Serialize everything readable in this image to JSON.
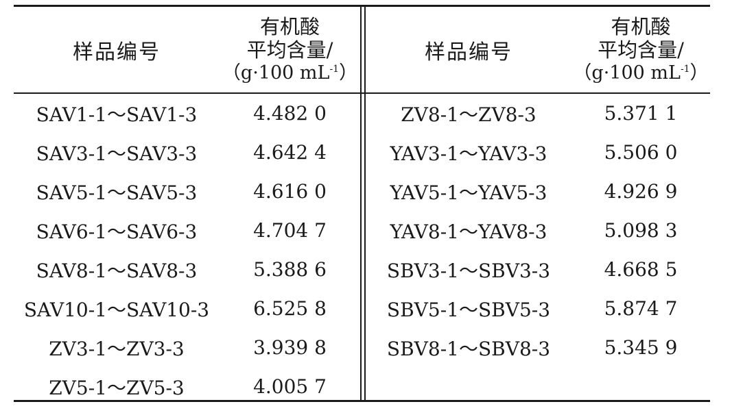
{
  "table": {
    "header": {
      "sample": "样品编号",
      "value_line1": "有机酸",
      "value_line2": "平均含量/",
      "unit_open": "（g·100 mL",
      "unit_sup": "-1",
      "unit_close": "）"
    },
    "left_rows": [
      {
        "sample": "SAV1-1～SAV1-3",
        "value": "4.482 0"
      },
      {
        "sample": "SAV3-1～SAV3-3",
        "value": "4.642 4"
      },
      {
        "sample": "SAV5-1～SAV5-3",
        "value": "4.616 0"
      },
      {
        "sample": "SAV6-1～SAV6-3",
        "value": "4.704 7"
      },
      {
        "sample": "SAV8-1～SAV8-3",
        "value": "5.388 6"
      },
      {
        "sample": "SAV10-1～SAV10-3",
        "value": "6.525 8"
      },
      {
        "sample": "ZV3-1～ZV3-3",
        "value": "3.939 8"
      },
      {
        "sample": "ZV5-1～ZV5-3",
        "value": "4.005 7"
      }
    ],
    "right_rows": [
      {
        "sample": "ZV8-1～ZV8-3",
        "value": "5.371 1"
      },
      {
        "sample": "YAV3-1～YAV3-3",
        "value": "5.506 0"
      },
      {
        "sample": "YAV5-1～YAV5-3",
        "value": "4.926 9"
      },
      {
        "sample": "YAV8-1～YAV8-3",
        "value": "5.098 3"
      },
      {
        "sample": "SBV3-1～SBV3-3",
        "value": "4.668 5"
      },
      {
        "sample": "SBV5-1～SBV5-3",
        "value": "5.874 7"
      },
      {
        "sample": "SBV8-1～SBV8-3",
        "value": "5.345 9"
      }
    ]
  }
}
